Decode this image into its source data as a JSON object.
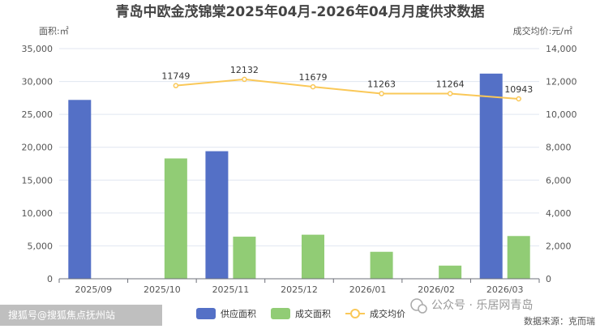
{
  "chart_data": {
    "type": "bar",
    "title": "青岛中欧金茂锦棠2025年04月-2026年04月月度供求数据",
    "ylabel_left": "面积:㎡",
    "ylabel_right": "成交均价:元/㎡",
    "categories": [
      "2025/09",
      "2025/10",
      "2025/11",
      "2025/12",
      "2026/01",
      "2026/02",
      "2026/03"
    ],
    "ylim_left": [
      0,
      35000
    ],
    "ylim_right": [
      0,
      14000
    ],
    "yticks_left": [
      "0",
      "5,000",
      "10,000",
      "15,000",
      "20,000",
      "25,000",
      "30,000",
      "35,000"
    ],
    "yticks_right": [
      "0",
      "2,000",
      "4,000",
      "6,000",
      "8,000",
      "10,000",
      "12,000",
      "14,000"
    ],
    "series": [
      {
        "name": "供应面积",
        "kind": "bar",
        "axis": "left",
        "color": "#5470c6",
        "values": [
          27200,
          null,
          19400,
          null,
          null,
          null,
          31200
        ]
      },
      {
        "name": "成交面积",
        "kind": "bar",
        "axis": "left",
        "color": "#91cc75",
        "values": [
          null,
          18300,
          6400,
          6700,
          4100,
          2000,
          6500
        ]
      },
      {
        "name": "成交均价",
        "kind": "line",
        "axis": "right",
        "color": "#fac858",
        "values": [
          null,
          11749,
          12132,
          11679,
          11263,
          11264,
          10943
        ]
      }
    ],
    "grid": true,
    "legend_position": "bottom"
  },
  "footer": {
    "left_text": "搜狐号@搜狐焦点抚州站",
    "source_text": "数据来源：克而瑞",
    "watermark_text": "公众号 · 乐居网青岛"
  }
}
